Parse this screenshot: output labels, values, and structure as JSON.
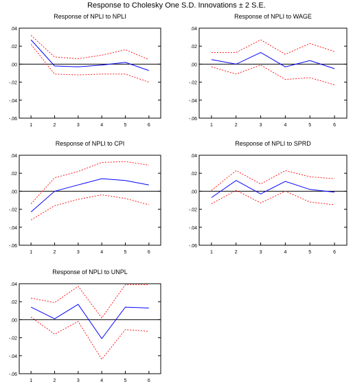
{
  "page": {
    "title": "Response to Cholesky One S.D. Innovations ± 2 S.E."
  },
  "colors": {
    "response": "#0000ff",
    "bands": "#ff0000",
    "zero_line": "#000000",
    "frame": "#000000"
  },
  "chart_data": [
    {
      "type": "line",
      "title": "Response of NPLI to NPLI",
      "x": [
        1,
        2,
        3,
        4,
        5,
        6
      ],
      "ylim": [
        -0.06,
        0.04
      ],
      "yticks": [
        ".04",
        ".02",
        ".00",
        "-.02",
        "-.04",
        "-.06"
      ],
      "xticks": [
        "1",
        "2",
        "3",
        "4",
        "5",
        "6"
      ],
      "grid": false,
      "series": [
        {
          "role": "response",
          "values": [
            0.027,
            -0.002,
            -0.003,
            -0.001,
            0.002,
            -0.007
          ]
        },
        {
          "role": "upper",
          "values": [
            0.032,
            0.008,
            0.006,
            0.01,
            0.016,
            0.005
          ]
        },
        {
          "role": "lower",
          "values": [
            0.022,
            -0.011,
            -0.012,
            -0.011,
            -0.011,
            -0.02
          ]
        }
      ]
    },
    {
      "type": "line",
      "title": "Response of NPLI to WAGE",
      "x": [
        1,
        2,
        3,
        4,
        5,
        6
      ],
      "ylim": [
        -0.06,
        0.04
      ],
      "yticks": [
        ".04",
        ".02",
        ".00",
        "-.02",
        "-.04",
        "-.06"
      ],
      "xticks": [
        "1",
        "2",
        "3",
        "4",
        "5",
        "6"
      ],
      "grid": false,
      "series": [
        {
          "role": "response",
          "values": [
            0.005,
            0.0,
            0.013,
            -0.003,
            0.004,
            -0.005
          ]
        },
        {
          "role": "upper",
          "values": [
            0.013,
            0.013,
            0.027,
            0.011,
            0.023,
            0.014
          ]
        },
        {
          "role": "lower",
          "values": [
            -0.003,
            -0.011,
            -0.001,
            -0.017,
            -0.015,
            -0.023
          ]
        }
      ]
    },
    {
      "type": "line",
      "title": "Response of NPLI to CPI",
      "x": [
        1,
        2,
        3,
        4,
        5,
        6
      ],
      "ylim": [
        -0.06,
        0.04
      ],
      "yticks": [
        ".04",
        ".02",
        ".00",
        "-.02",
        "-.04",
        "-.06"
      ],
      "xticks": [
        "1",
        "2",
        "3",
        "4",
        "5",
        "6"
      ],
      "grid": false,
      "series": [
        {
          "role": "response",
          "values": [
            -0.023,
            0.0,
            0.007,
            0.014,
            0.012,
            0.007
          ]
        },
        {
          "role": "upper",
          "values": [
            -0.014,
            0.015,
            0.022,
            0.032,
            0.033,
            0.029
          ]
        },
        {
          "role": "lower",
          "values": [
            -0.032,
            -0.016,
            -0.009,
            -0.004,
            -0.008,
            -0.015
          ]
        }
      ]
    },
    {
      "type": "line",
      "title": "Response of NPLI to SPRD",
      "x": [
        1,
        2,
        3,
        4,
        5,
        6
      ],
      "ylim": [
        -0.06,
        0.04
      ],
      "yticks": [
        ".04",
        ".02",
        ".00",
        "-.02",
        "-.04",
        "-.06"
      ],
      "xticks": [
        "1",
        "2",
        "3",
        "4",
        "5",
        "6"
      ],
      "grid": false,
      "series": [
        {
          "role": "response",
          "values": [
            -0.007,
            0.012,
            -0.003,
            0.011,
            0.002,
            -0.001
          ]
        },
        {
          "role": "upper",
          "values": [
            0.001,
            0.023,
            0.008,
            0.023,
            0.016,
            0.014
          ]
        },
        {
          "role": "lower",
          "values": [
            -0.014,
            0.001,
            -0.013,
            0.0,
            -0.012,
            -0.015
          ]
        }
      ]
    },
    {
      "type": "line",
      "title": "Response of NPLI to UNPL",
      "x": [
        1,
        2,
        3,
        4,
        5,
        6
      ],
      "ylim": [
        -0.06,
        0.04
      ],
      "yticks": [
        ".04",
        ".02",
        ".00",
        "-.02",
        "-.04",
        "-.06"
      ],
      "xticks": [
        "1",
        "2",
        "3",
        "4",
        "5",
        "6"
      ],
      "grid": false,
      "series": [
        {
          "role": "response",
          "values": [
            0.014,
            0.001,
            0.017,
            -0.021,
            0.014,
            0.013
          ]
        },
        {
          "role": "upper",
          "values": [
            0.024,
            0.019,
            0.037,
            0.002,
            0.039,
            0.039
          ]
        },
        {
          "role": "lower",
          "values": [
            0.003,
            -0.016,
            -0.002,
            -0.044,
            -0.011,
            -0.013
          ]
        }
      ]
    }
  ]
}
